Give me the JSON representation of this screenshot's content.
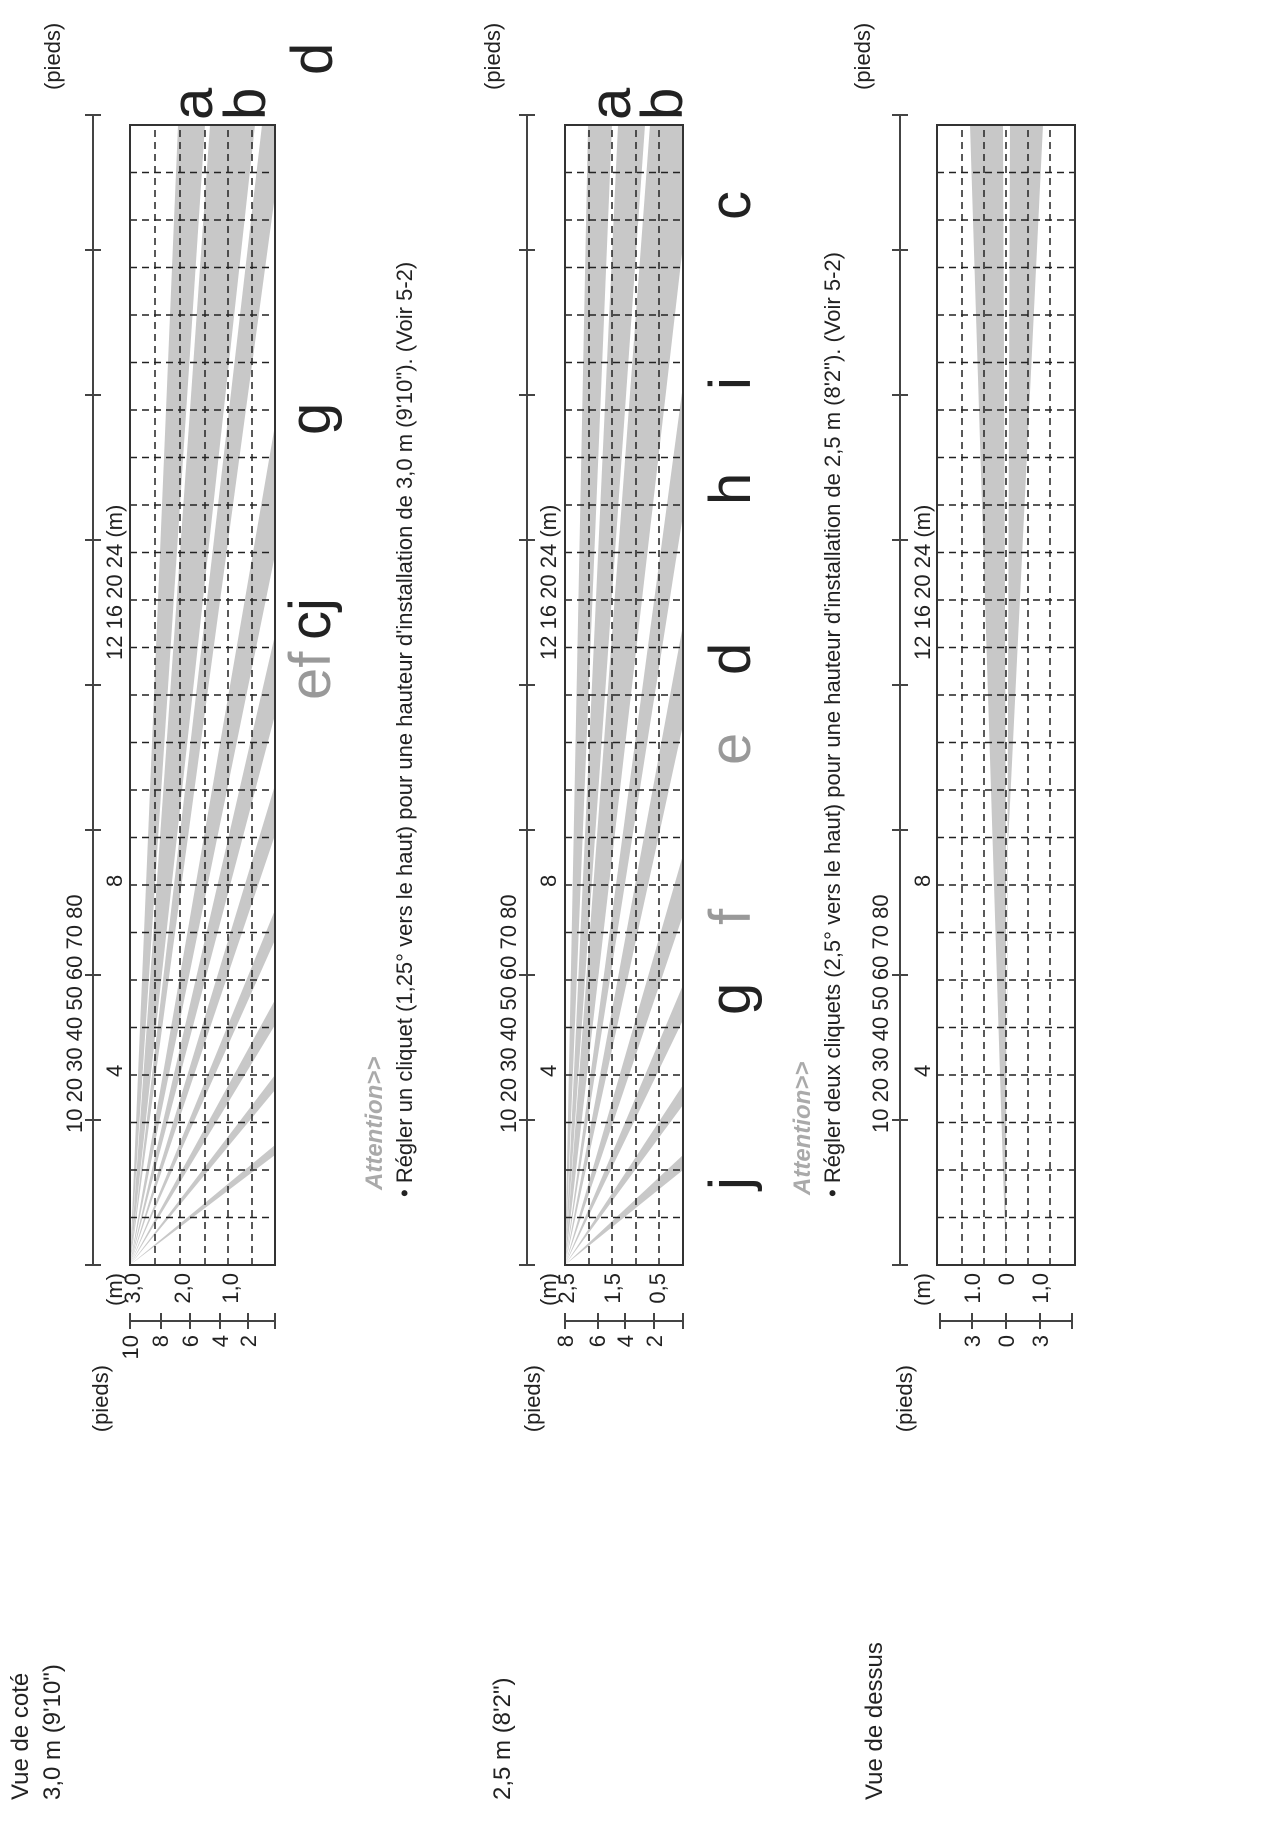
{
  "side_view": {
    "title": "Vue de coté",
    "panel1": {
      "height_label": "3,0 m (9'10\")",
      "feet_unit": "(pieds)",
      "feet_ticks": [
        "10",
        "8",
        "6",
        "4",
        "2"
      ],
      "m_unit": "(m)",
      "m_ticks": [
        "3,0",
        "2,0",
        "1,0"
      ],
      "distance_feet_labels": "10 20 30 40 50 60 70 80",
      "distance_feet_unit": "(pieds)",
      "distance_m_labels": [
        "4",
        "8",
        "12 16 20 24 (m)"
      ],
      "zone_labels_black": [
        "a",
        "b",
        "d",
        "g",
        "cj"
      ],
      "zone_labels_grey": [
        "ef"
      ],
      "attention": "Attention>>",
      "note": "• Régler un cliquet (1,25° vers le haut) pour une hauteur d'installation de 3,0 m (9'10\"). (Voir 5-2)"
    },
    "panel2": {
      "height_label": "2,5 m (8'2\")",
      "feet_unit": "(pieds)",
      "feet_ticks": [
        "8",
        "6",
        "4",
        "2"
      ],
      "m_unit": "(m)",
      "m_ticks": [
        "2,5",
        "1,5",
        "0,5"
      ],
      "distance_feet_labels": "10 20 30 40 50 60 70 80",
      "distance_feet_unit": "(pieds)",
      "distance_m_labels": [
        "4",
        "8",
        "12 16 20 24 (m)"
      ],
      "zone_labels_black": [
        "a",
        "b",
        "c",
        "i",
        "h",
        "d",
        "g",
        "j"
      ],
      "zone_labels_grey": [
        "e",
        "f"
      ],
      "attention": "Attention>>",
      "note": "• Régler deux cliquets (2,5° vers le haut) pour une hauteur d'installation de 2,5 m (8'2\"). (Voir 5-2)"
    }
  },
  "top_view": {
    "title": "Vue de dessus",
    "feet_unit": "(pieds)",
    "feet_ticks": [
      "3",
      "0",
      "3"
    ],
    "m_unit": "(m)",
    "m_ticks": [
      "1.0",
      "0",
      "1,0"
    ],
    "distance_feet_labels": "10 20 30 40 50 60 70 80",
    "distance_feet_unit": "(pieds)",
    "distance_m_labels": [
      "4",
      "8",
      "12 16 20 24 (m)"
    ]
  },
  "colors": {
    "beam": "#c8c8c8",
    "grid": "#222222",
    "grey_label": "#999999"
  }
}
